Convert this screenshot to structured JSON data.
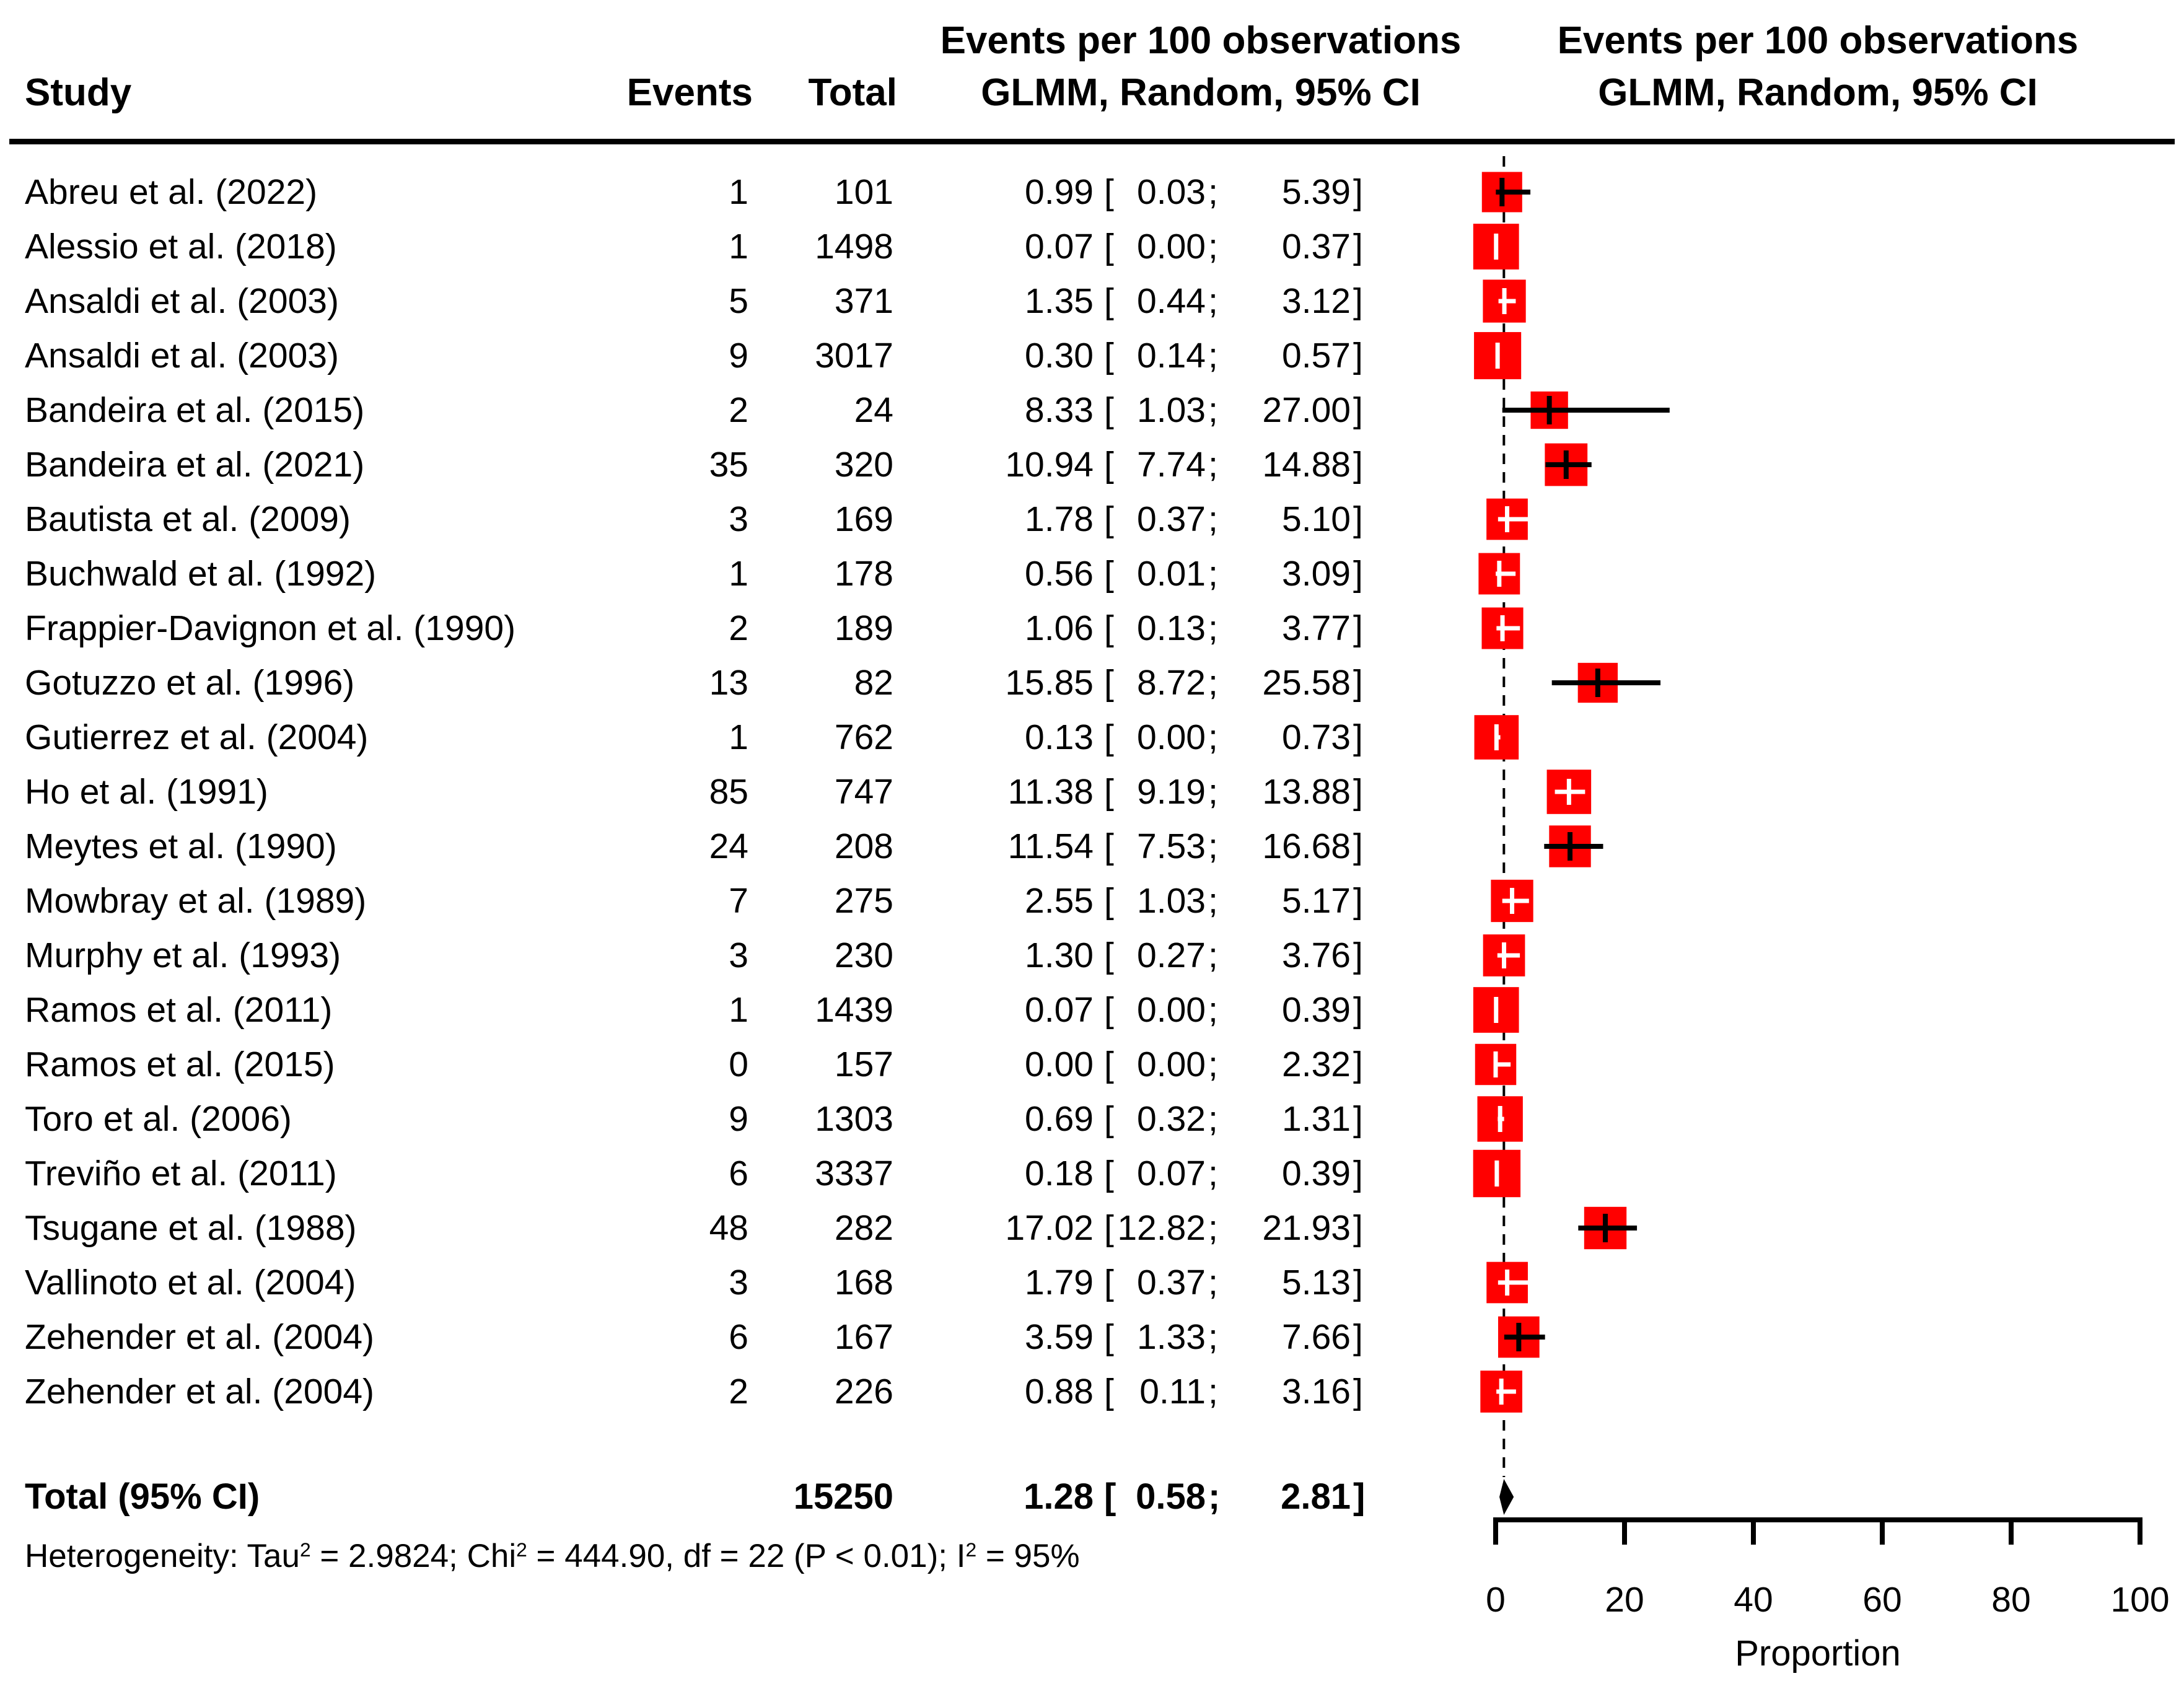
{
  "header": {
    "study": "Study",
    "events": "Events",
    "total": "Total",
    "effect_col_line1": "Events per 100 observations",
    "effect_col_line2": "GLMM, Random, 95% CI",
    "plot_col_line1": "Events per 100 observations",
    "plot_col_line2": "GLMM, Random, 95% CI"
  },
  "punct": {
    "open": "[",
    "sep": ";",
    "close": "]"
  },
  "chart_data": {
    "type": "forest",
    "effect_measure": "Events per 100 observations",
    "model": "GLMM, Random, 95% CI",
    "studies": [
      {
        "label": "Abreu et al. (2022)",
        "events": 1,
        "total": 101,
        "est": 0.99,
        "lo": 0.03,
        "hi": 5.39
      },
      {
        "label": "Alessio et al. (2018)",
        "events": 1,
        "total": 1498,
        "est": 0.07,
        "lo": 0,
        "hi": 0.37
      },
      {
        "label": "Ansaldi et al. (2003)",
        "events": 5,
        "total": 371,
        "est": 1.35,
        "lo": 0.44,
        "hi": 3.12
      },
      {
        "label": "Ansaldi et al. (2003)",
        "events": 9,
        "total": 3017,
        "est": 0.3,
        "lo": 0.14,
        "hi": 0.57
      },
      {
        "label": "Bandeira et al. (2015)",
        "events": 2,
        "total": 24,
        "est": 8.33,
        "lo": 1.03,
        "hi": 27.0
      },
      {
        "label": "Bandeira et al. (2021)",
        "events": 35,
        "total": 320,
        "est": 10.94,
        "lo": 7.74,
        "hi": 14.88
      },
      {
        "label": "Bautista et al. (2009)",
        "events": 3,
        "total": 169,
        "est": 1.78,
        "lo": 0.37,
        "hi": 5.1
      },
      {
        "label": "Buchwald et al. (1992)",
        "events": 1,
        "total": 178,
        "est": 0.56,
        "lo": 0.01,
        "hi": 3.09
      },
      {
        "label": "Frappier-Davignon et al. (1990)",
        "events": 2,
        "total": 189,
        "est": 1.06,
        "lo": 0.13,
        "hi": 3.77
      },
      {
        "label": "Gotuzzo et al. (1996)",
        "events": 13,
        "total": 82,
        "est": 15.85,
        "lo": 8.72,
        "hi": 25.58
      },
      {
        "label": "Gutierrez et al. (2004)",
        "events": 1,
        "total": 762,
        "est": 0.13,
        "lo": 0,
        "hi": 0.73
      },
      {
        "label": "Ho et al. (1991)",
        "events": 85,
        "total": 747,
        "est": 11.38,
        "lo": 9.19,
        "hi": 13.88
      },
      {
        "label": "Meytes et al. (1990)",
        "events": 24,
        "total": 208,
        "est": 11.54,
        "lo": 7.53,
        "hi": 16.68
      },
      {
        "label": "Mowbray et al. (1989)",
        "events": 7,
        "total": 275,
        "est": 2.55,
        "lo": 1.03,
        "hi": 5.17
      },
      {
        "label": "Murphy et al. (1993)",
        "events": 3,
        "total": 230,
        "est": 1.3,
        "lo": 0.27,
        "hi": 3.76
      },
      {
        "label": "Ramos et al. (2011)",
        "events": 1,
        "total": 1439,
        "est": 0.07,
        "lo": 0,
        "hi": 0.39
      },
      {
        "label": "Ramos et al. (2015)",
        "events": 0,
        "total": 157,
        "est": 0.0,
        "lo": 0,
        "hi": 2.32
      },
      {
        "label": "Toro et al. (2006)",
        "events": 9,
        "total": 1303,
        "est": 0.69,
        "lo": 0.32,
        "hi": 1.31
      },
      {
        "label": "Treviño et al. (2011)",
        "events": 6,
        "total": 3337,
        "est": 0.18,
        "lo": 0.07,
        "hi": 0.39
      },
      {
        "label": "Tsugane et al. (1988)",
        "events": 48,
        "total": 282,
        "est": 17.02,
        "lo": 12.82,
        "hi": 21.93
      },
      {
        "label": "Vallinoto et al. (2004)",
        "events": 3,
        "total": 168,
        "est": 1.79,
        "lo": 0.37,
        "hi": 5.13
      },
      {
        "label": "Zehender et al. (2004)",
        "events": 6,
        "total": 167,
        "est": 3.59,
        "lo": 1.33,
        "hi": 7.66
      },
      {
        "label": "Zehender et al. (2004)",
        "events": 2,
        "total": 226,
        "est": 0.88,
        "lo": 0.11,
        "hi": 3.16
      }
    ],
    "total_row": {
      "label": "Total (95% CI)",
      "total": 15250,
      "est": 1.28,
      "lo": 0.58,
      "hi": 2.81
    },
    "heterogeneity_segments": [
      {
        "text": "Heterogeneity: Tau"
      },
      {
        "sup": "2"
      },
      {
        "text": " = 2.9824; Chi"
      },
      {
        "sup": "2"
      },
      {
        "text": " = 444.90, df = 22 (P < 0.01); I"
      },
      {
        "sup": "2"
      },
      {
        "text": " = 95%"
      }
    ],
    "axis": {
      "min": 0,
      "max": 100,
      "ticks": [
        0,
        20,
        40,
        60,
        80,
        100
      ],
      "xlabel": "Proportion"
    },
    "legend_position": "none",
    "grid": false
  },
  "colors": {
    "square": "#ff0000",
    "diamond": "#000000",
    "line": "#000000",
    "text": "#000000",
    "ci_inside": "#ffffff",
    "ci_outside": "#000000",
    "background": "#ffffff"
  }
}
